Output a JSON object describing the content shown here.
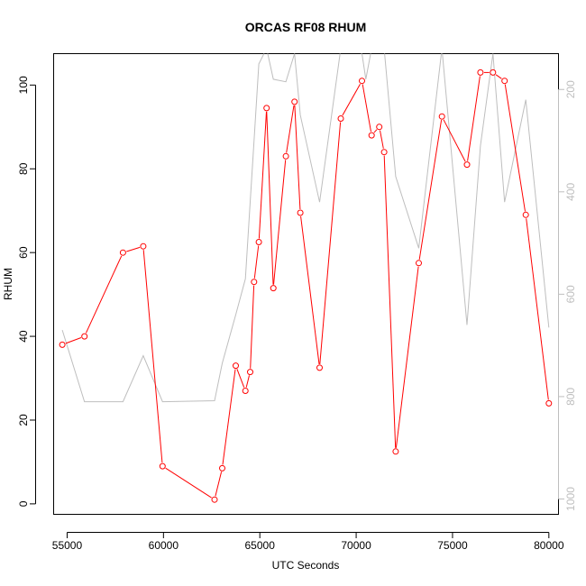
{
  "chart_data": {
    "type": "line",
    "title": "ORCAS RF08 RHUM",
    "xlabel": "UTC Seconds",
    "ylabel": "RHUM",
    "xlim": [
      54300,
      80500
    ],
    "ylim": [
      -2.5,
      107.5
    ],
    "x_ticks": [
      55000,
      60000,
      65000,
      70000,
      75000,
      80000
    ],
    "y_ticks": [
      0,
      20,
      40,
      60,
      80,
      100
    ],
    "grid": false,
    "legend": "none",
    "series": [
      {
        "color": "#ff0000",
        "marker": "open-circle",
        "x": [
          54750,
          55900,
          57900,
          58950,
          59950,
          62650,
          63050,
          63750,
          64250,
          64500,
          64700,
          64950,
          65350,
          65700,
          66350,
          66800,
          67100,
          68100,
          69200,
          70300,
          70800,
          71200,
          71450,
          72050,
          73250,
          74450,
          75750,
          76450,
          77100,
          77700,
          78800,
          80000
        ],
        "y": [
          38,
          40,
          60,
          61.5,
          9,
          1,
          8.5,
          33,
          27,
          31.5,
          53,
          62.5,
          94.5,
          51.5,
          83,
          96,
          69.5,
          32.5,
          92,
          101,
          88,
          90,
          84,
          12.5,
          57.5,
          92.5,
          81,
          103,
          103,
          101,
          69,
          24
        ]
      },
      {
        "color": "#bebebe",
        "marker": "none",
        "axis": "right",
        "x": [
          54750,
          55900,
          57900,
          58950,
          59950,
          62650,
          63050,
          63750,
          64250,
          64500,
          64700,
          64950,
          65350,
          65700,
          66350,
          66800,
          67100,
          68100,
          69200,
          70300,
          70500,
          70800,
          71200,
          71450,
          72050,
          73250,
          74450,
          75750,
          76450,
          77100,
          77700,
          78800,
          80000
        ],
        "y": [
          670,
          810,
          810,
          720,
          810,
          808,
          735,
          640,
          570,
          420,
          300,
          150,
          120,
          180,
          185,
          130,
          250,
          420,
          120,
          130,
          180,
          120,
          120,
          120,
          370,
          510,
          120,
          660,
          310,
          130,
          420,
          220,
          665
        ]
      }
    ],
    "right_axis": {
      "ylim": [
        1030,
        130
      ],
      "ticks": [
        200,
        400,
        600,
        800,
        1000
      ]
    }
  }
}
